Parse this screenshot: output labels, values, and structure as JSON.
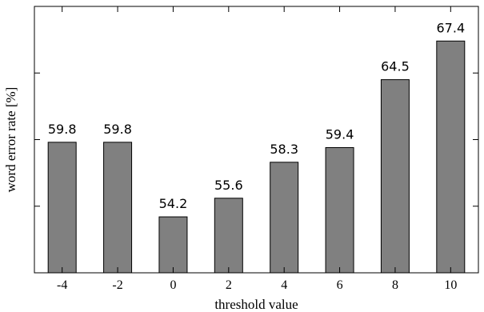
{
  "chart_data": {
    "type": "bar",
    "categories": [
      "-4",
      "-2",
      "0",
      "2",
      "4",
      "6",
      "8",
      "10"
    ],
    "values": [
      59.8,
      59.8,
      54.2,
      55.6,
      58.3,
      59.4,
      64.5,
      67.4
    ],
    "data_labels": [
      "59.8",
      "59.8",
      "54.2",
      "55.6",
      "58.3",
      "59.4",
      "64.5",
      "67.4"
    ],
    "xlabel": "threshold value",
    "ylabel": "word error rate [%]",
    "ylim": [
      50,
      70
    ],
    "y_ticks": [
      55,
      60,
      65
    ],
    "y_tick_labels_shown": false,
    "grid": false,
    "bar_color": "#808080",
    "bar_edge_color": "#000000"
  }
}
